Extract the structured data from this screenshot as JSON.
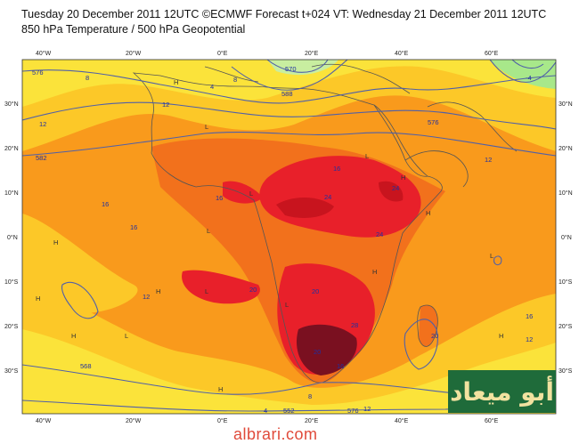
{
  "header": {
    "line1": "Tuesday 20 December 2011 12UTC ©ECMWF Forecast t+024 VT: Wednesday 21 December 2011 12UTC",
    "line2": "850 hPa Temperature / 500 hPa Geopotential"
  },
  "axes": {
    "top_lon": [
      {
        "id": "40w",
        "label": "40°W"
      },
      {
        "id": "20w",
        "label": "20°W"
      },
      {
        "id": "0e",
        "label": "0°E"
      },
      {
        "id": "20e",
        "label": "20°E"
      },
      {
        "id": "40e",
        "label": "40°E"
      },
      {
        "id": "60e",
        "label": "60°E"
      }
    ],
    "lat": [
      {
        "id": "30n",
        "label": "30°N"
      },
      {
        "id": "20n",
        "label": "20°N"
      },
      {
        "id": "10n",
        "label": "10°N"
      },
      {
        "id": "0n",
        "label": "0°N"
      },
      {
        "id": "10s",
        "label": "10°S"
      },
      {
        "id": "20s",
        "label": "20°S"
      },
      {
        "id": "30s",
        "label": "30°S"
      }
    ]
  },
  "contour_labels": [
    "576",
    "8",
    "12",
    "16",
    "12",
    "20",
    "24",
    "24",
    "16",
    "16",
    "20",
    "24",
    "28",
    "20",
    "16",
    "12",
    "588",
    "582",
    "570",
    "576",
    "12",
    "16",
    "4",
    "8",
    "12",
    "20",
    "16",
    "12",
    "568",
    "576",
    "552",
    "-4",
    "8",
    "4"
  ],
  "pressure_marks": {
    "high": "H",
    "low": "L"
  },
  "colors": {
    "yellow": "#fbe33a",
    "light_orange": "#fcc828",
    "orange": "#f99a1c",
    "dark_orange": "#f2711c",
    "red": "#e8202a",
    "crimson": "#c8141e",
    "maroon": "#7a1020",
    "cool_green": "#a8e88a",
    "contour": "#5060a8",
    "coast": "#555555"
  },
  "watermark": "albrari.com",
  "logo": "أبو ميعاد"
}
